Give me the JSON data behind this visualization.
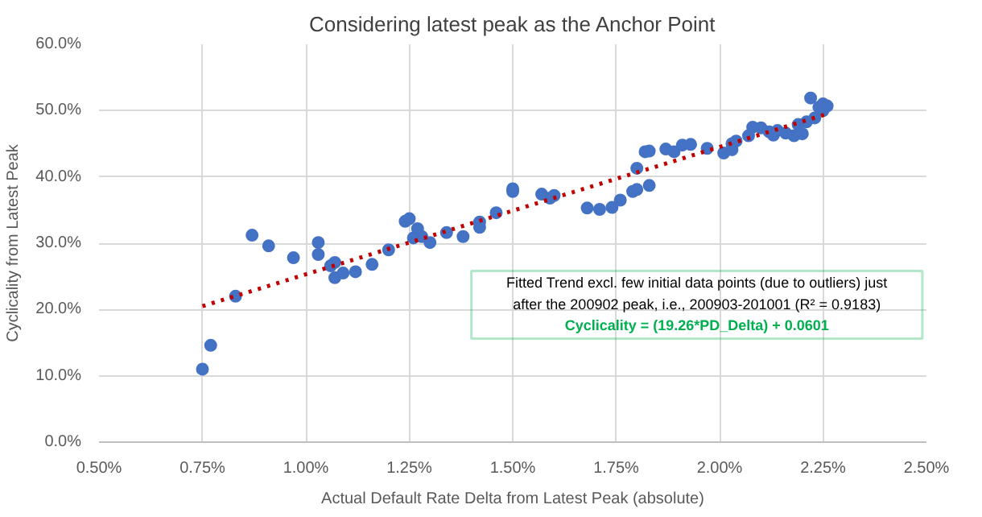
{
  "chart_data": {
    "type": "scatter",
    "title": "Considering latest peak as the Anchor Point",
    "xlabel": "Actual Default Rate Delta from Latest Peak (absolute)",
    "ylabel": "Cyclicality from Latest Peak",
    "xlim": [
      0.5,
      2.5
    ],
    "ylim": [
      0,
      60
    ],
    "xticks": [
      {
        "value": 0.5,
        "label": "0.50%"
      },
      {
        "value": 0.75,
        "label": "0.75%"
      },
      {
        "value": 1.0,
        "label": "1.00%"
      },
      {
        "value": 1.25,
        "label": "1.25%"
      },
      {
        "value": 1.5,
        "label": "1.50%"
      },
      {
        "value": 1.75,
        "label": "1.75%"
      },
      {
        "value": 2.0,
        "label": "2.00%"
      },
      {
        "value": 2.25,
        "label": "2.25%"
      },
      {
        "value": 2.5,
        "label": "2.50%"
      }
    ],
    "yticks": [
      {
        "value": 0,
        "label": "0.0%"
      },
      {
        "value": 10,
        "label": "10.0%"
      },
      {
        "value": 20,
        "label": "20.0%"
      },
      {
        "value": 30,
        "label": "30.0%"
      },
      {
        "value": 40,
        "label": "40.0%"
      },
      {
        "value": 50,
        "label": "50.0%"
      },
      {
        "value": 60,
        "label": "60.0%"
      }
    ],
    "grid": true,
    "series": [
      {
        "color": "#4472c4",
        "marker": "circle",
        "x": [
          0.75,
          0.77,
          0.83,
          0.87,
          0.91,
          0.97,
          1.03,
          1.03,
          1.06,
          1.07,
          1.07,
          1.09,
          1.12,
          1.16,
          1.2,
          1.24,
          1.25,
          1.26,
          1.27,
          1.28,
          1.3,
          1.34,
          1.38,
          1.42,
          1.42,
          1.46,
          1.5,
          1.5,
          1.57,
          1.59,
          1.6,
          1.68,
          1.71,
          1.74,
          1.76,
          1.79,
          1.8,
          1.8,
          1.82,
          1.83,
          1.83,
          1.87,
          1.89,
          1.91,
          1.93,
          1.97,
          2.01,
          2.03,
          2.03,
          2.04,
          2.07,
          2.08,
          2.1,
          2.12,
          2.13,
          2.14,
          2.16,
          2.18,
          2.19,
          2.2,
          2.21,
          2.22,
          2.23,
          2.24,
          2.25,
          2.25,
          2.26
        ],
        "values": [
          11.0,
          14.6,
          22.0,
          31.2,
          29.6,
          27.8,
          30.1,
          28.3,
          26.6,
          27.1,
          24.8,
          25.5,
          25.7,
          26.8,
          29.0,
          33.3,
          33.7,
          30.8,
          32.2,
          31.0,
          30.1,
          31.6,
          31.0,
          32.4,
          33.2,
          34.6,
          37.8,
          38.2,
          37.4,
          36.8,
          37.2,
          35.3,
          35.1,
          35.4,
          36.5,
          37.8,
          38.1,
          41.3,
          43.8,
          43.9,
          38.7,
          44.2,
          43.8,
          44.8,
          44.9,
          44.3,
          43.6,
          44.1,
          45.0,
          45.4,
          46.2,
          47.5,
          47.4,
          46.8,
          46.3,
          47.0,
          46.6,
          46.2,
          47.9,
          46.5,
          48.3,
          51.9,
          48.9,
          50.5,
          51.0,
          50.0,
          50.7
        ]
      },
      {
        "type": "line",
        "color": "#c00000",
        "line_style": "dotted",
        "marker": "none",
        "x": [
          0.75,
          2.26
        ],
        "values": [
          20.5,
          49.5
        ]
      }
    ],
    "annotations": [
      "Fitted Trend excl. few initial data points (due to outliers) just after the 200902 peak, i.e., 200903-201001 (R² = 0.9183)",
      "Cyclicality = (19.26*PD_Delta) + 0.0601"
    ]
  }
}
